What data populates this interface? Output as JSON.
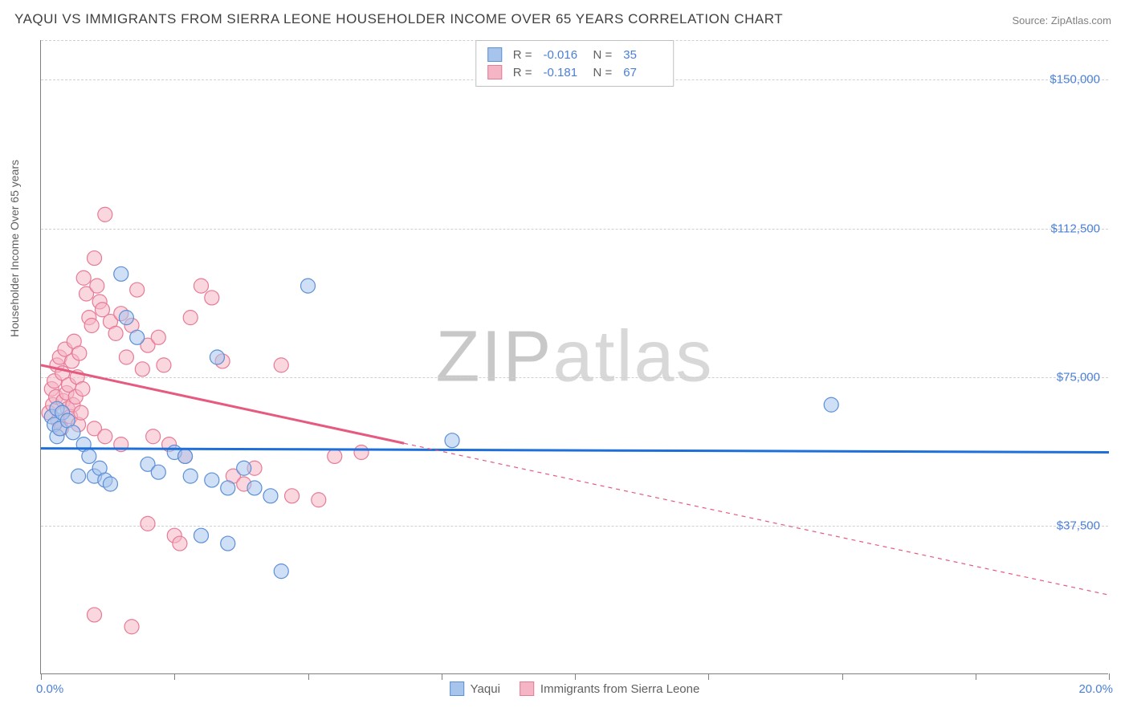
{
  "title": "YAQUI VS IMMIGRANTS FROM SIERRA LEONE HOUSEHOLDER INCOME OVER 65 YEARS CORRELATION CHART",
  "source_prefix": "Source: ",
  "source_name": "ZipAtlas.com",
  "ylabel": "Householder Income Over 65 years",
  "watermark_a": "ZIP",
  "watermark_b": "atlas",
  "chart": {
    "type": "scatter_with_regression",
    "xlim": [
      0,
      20
    ],
    "ylim": [
      0,
      160000
    ],
    "x_min_label": "0.0%",
    "x_max_label": "20.0%",
    "x_ticks": [
      0,
      2.5,
      5,
      7.5,
      10,
      12.5,
      15,
      17.5,
      20
    ],
    "y_gridlines": [
      {
        "v": 37500,
        "label": "$37,500"
      },
      {
        "v": 75000,
        "label": "$75,000"
      },
      {
        "v": 112500,
        "label": "$112,500"
      },
      {
        "v": 150000,
        "label": "$150,000"
      }
    ],
    "background_color": "#ffffff",
    "grid_color": "#d0d0d0",
    "axis_color": "#808080",
    "label_color": "#4a7fd8",
    "series": [
      {
        "name": "Yaqui",
        "r_label": "R =",
        "r_value": "-0.016",
        "n_label": "N =",
        "n_value": "35",
        "marker_fill": "#a7c5ec",
        "marker_stroke": "#5b8fd6",
        "marker_fill_opacity": 0.55,
        "marker_radius": 9,
        "line_color": "#1e6fd9",
        "line_width": 3,
        "regression": {
          "x1": 0,
          "y1": 57000,
          "x2": 20,
          "y2": 56000,
          "solid_until_x": 20
        },
        "points": [
          [
            0.2,
            65000
          ],
          [
            0.25,
            63000
          ],
          [
            0.3,
            67000
          ],
          [
            0.3,
            60000
          ],
          [
            0.35,
            62000
          ],
          [
            0.4,
            66000
          ],
          [
            0.5,
            64000
          ],
          [
            0.6,
            61000
          ],
          [
            0.7,
            50000
          ],
          [
            0.8,
            58000
          ],
          [
            0.9,
            55000
          ],
          [
            1.0,
            50000
          ],
          [
            1.1,
            52000
          ],
          [
            1.2,
            49000
          ],
          [
            1.3,
            48000
          ],
          [
            1.5,
            101000
          ],
          [
            1.6,
            90000
          ],
          [
            1.8,
            85000
          ],
          [
            2.0,
            53000
          ],
          [
            2.2,
            51000
          ],
          [
            2.5,
            56000
          ],
          [
            2.7,
            55000
          ],
          [
            2.8,
            50000
          ],
          [
            3.0,
            35000
          ],
          [
            3.2,
            49000
          ],
          [
            3.3,
            80000
          ],
          [
            3.5,
            47000
          ],
          [
            3.5,
            33000
          ],
          [
            3.8,
            52000
          ],
          [
            4.0,
            47000
          ],
          [
            4.3,
            45000
          ],
          [
            4.5,
            26000
          ],
          [
            5.0,
            98000
          ],
          [
            7.7,
            59000
          ],
          [
            14.8,
            68000
          ]
        ]
      },
      {
        "name": "Immigrants from Sierra Leone",
        "r_label": "R =",
        "r_value": "-0.181",
        "n_label": "N =",
        "n_value": "67",
        "marker_fill": "#f5b5c4",
        "marker_stroke": "#e77a95",
        "marker_fill_opacity": 0.55,
        "marker_radius": 9,
        "line_color": "#e65a7f",
        "line_width": 3,
        "regression": {
          "x1": 0,
          "y1": 78000,
          "x2": 20,
          "y2": 20000,
          "solid_until_x": 6.8
        },
        "points": [
          [
            0.15,
            66000
          ],
          [
            0.2,
            72000
          ],
          [
            0.22,
            68000
          ],
          [
            0.25,
            74000
          ],
          [
            0.28,
            70000
          ],
          [
            0.3,
            78000
          ],
          [
            0.32,
            64000
          ],
          [
            0.35,
            80000
          ],
          [
            0.38,
            62000
          ],
          [
            0.4,
            76000
          ],
          [
            0.42,
            69000
          ],
          [
            0.45,
            82000
          ],
          [
            0.48,
            71000
          ],
          [
            0.5,
            67000
          ],
          [
            0.52,
            73000
          ],
          [
            0.55,
            65000
          ],
          [
            0.58,
            79000
          ],
          [
            0.6,
            68000
          ],
          [
            0.62,
            84000
          ],
          [
            0.65,
            70000
          ],
          [
            0.68,
            75000
          ],
          [
            0.7,
            63000
          ],
          [
            0.72,
            81000
          ],
          [
            0.75,
            66000
          ],
          [
            0.78,
            72000
          ],
          [
            0.8,
            100000
          ],
          [
            0.85,
            96000
          ],
          [
            0.9,
            90000
          ],
          [
            0.95,
            88000
          ],
          [
            1.0,
            105000
          ],
          [
            1.05,
            98000
          ],
          [
            1.1,
            94000
          ],
          [
            1.15,
            92000
          ],
          [
            1.2,
            116000
          ],
          [
            1.3,
            89000
          ],
          [
            1.4,
            86000
          ],
          [
            1.5,
            91000
          ],
          [
            1.6,
            80000
          ],
          [
            1.7,
            88000
          ],
          [
            1.8,
            97000
          ],
          [
            1.9,
            77000
          ],
          [
            2.0,
            83000
          ],
          [
            2.1,
            60000
          ],
          [
            2.2,
            85000
          ],
          [
            2.3,
            78000
          ],
          [
            2.4,
            58000
          ],
          [
            2.5,
            35000
          ],
          [
            2.6,
            33000
          ],
          [
            2.7,
            55000
          ],
          [
            2.8,
            90000
          ],
          [
            3.0,
            98000
          ],
          [
            3.2,
            95000
          ],
          [
            3.4,
            79000
          ],
          [
            3.6,
            50000
          ],
          [
            3.8,
            48000
          ],
          [
            4.0,
            52000
          ],
          [
            4.5,
            78000
          ],
          [
            4.7,
            45000
          ],
          [
            5.2,
            44000
          ],
          [
            5.5,
            55000
          ],
          [
            6.0,
            56000
          ],
          [
            1.0,
            62000
          ],
          [
            1.2,
            60000
          ],
          [
            1.5,
            58000
          ],
          [
            1.7,
            12000
          ],
          [
            1.0,
            15000
          ],
          [
            2.0,
            38000
          ]
        ]
      }
    ]
  }
}
